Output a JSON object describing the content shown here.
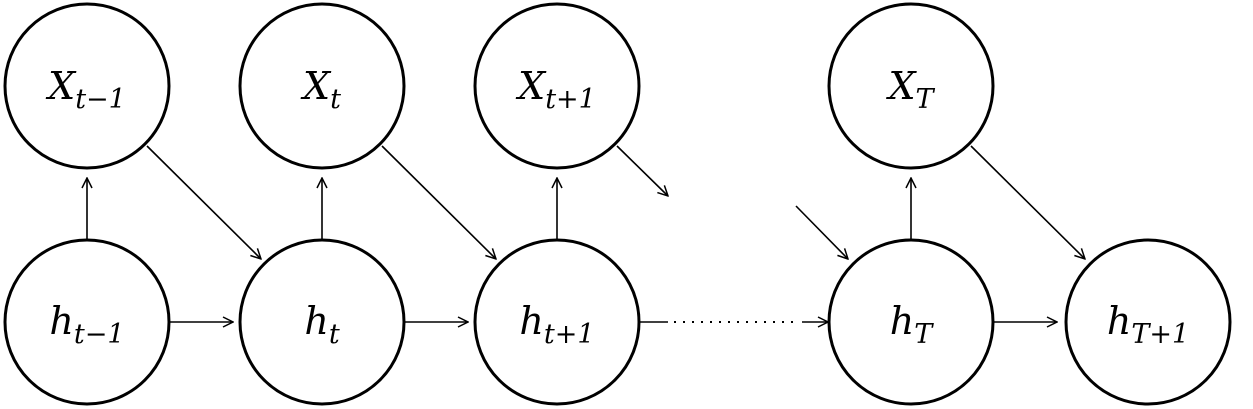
{
  "diagram": {
    "type": "rnn-unrolled-graph",
    "inputs": [
      {
        "base": "X",
        "sub": "t−1"
      },
      {
        "base": "X",
        "sub": "t"
      },
      {
        "base": "X",
        "sub": "t+1"
      },
      {
        "base": "X",
        "sub": "T"
      }
    ],
    "hidden": [
      {
        "base": "h",
        "sub": "t−1"
      },
      {
        "base": "h",
        "sub": "t"
      },
      {
        "base": "h",
        "sub": "t+1"
      },
      {
        "base": "h",
        "sub": "T"
      },
      {
        "base": "h",
        "sub": "T+1"
      }
    ],
    "colors": {
      "stroke": "#000000",
      "fill": "#ffffff",
      "background": "#ffffff"
    }
  }
}
